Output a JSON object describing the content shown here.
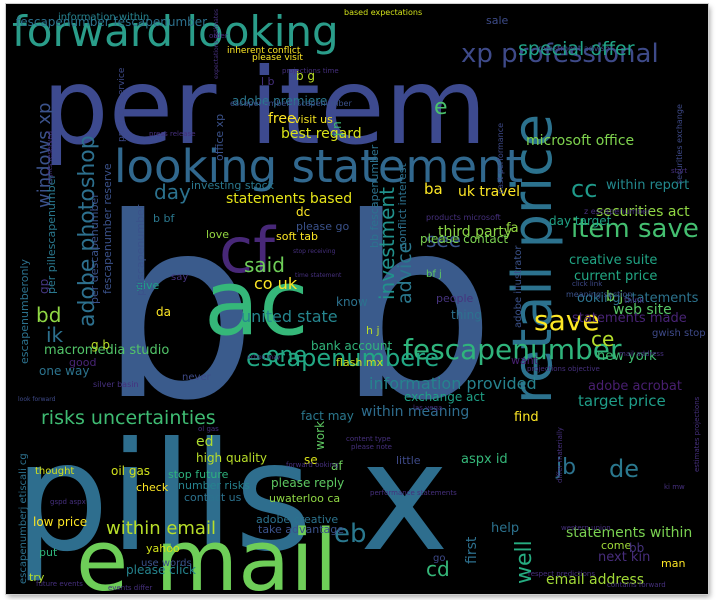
{
  "wordcloud": {
    "words": [
      {
        "text": "b b",
        "color": "#3a5b8c"
      },
      {
        "text": "per item",
        "color": "#3d4a8f"
      },
      {
        "text": "pills x",
        "color": "#2e6e8e"
      },
      {
        "text": "ac",
        "color": "#35b779"
      },
      {
        "text": "e mail",
        "color": "#6ece58"
      },
      {
        "text": "looking statement",
        "color": "#31688e"
      },
      {
        "text": "forward looking",
        "color": "#2a9d8a"
      },
      {
        "text": "retail price",
        "color": "#2c728e"
      },
      {
        "text": "cf",
        "color": "#482878"
      },
      {
        "text": "fescapenumber",
        "color": "#2fb47c"
      },
      {
        "text": "escapenumbere",
        "color": "#22a884"
      },
      {
        "text": "xp professional",
        "color": "#3e4a89"
      },
      {
        "text": "special offer",
        "color": "#20a486"
      },
      {
        "text": "item save",
        "color": "#44bf70"
      },
      {
        "text": "adobe photoshop",
        "color": "#2d708e"
      },
      {
        "text": "risks uncertainties",
        "color": "#3fbc73"
      },
      {
        "text": "within email",
        "color": "#b8de29"
      },
      {
        "text": "investment",
        "color": "#21918c"
      },
      {
        "text": "advice",
        "color": "#2a788e"
      },
      {
        "text": "windows xp",
        "color": "#3b528b"
      },
      {
        "text": "information provided",
        "color": "#26828e"
      },
      {
        "text": "email address",
        "color": "#a2da37"
      },
      {
        "text": "statements within",
        "color": "#7ad151"
      },
      {
        "text": "target price",
        "color": "#1f9e89"
      },
      {
        "text": "united state",
        "color": "#25858e"
      },
      {
        "text": "one",
        "color": "#22a884"
      },
      {
        "text": "said",
        "color": "#6ece58"
      },
      {
        "text": "co uk",
        "color": "#fde725"
      },
      {
        "text": "day",
        "color": "#2c728e"
      },
      {
        "text": "see",
        "color": "#3a548c"
      },
      {
        "text": "save",
        "color": "#fde725"
      },
      {
        "text": "cc",
        "color": "#1f9a8a"
      },
      {
        "text": "ce",
        "color": "#b5de2b"
      },
      {
        "text": "de",
        "color": "#2a788e"
      },
      {
        "text": "cd",
        "color": "#35b779"
      },
      {
        "text": "eb",
        "color": "#2a788e"
      },
      {
        "text": "ik",
        "color": "#2d708e"
      },
      {
        "text": "bd",
        "color": "#8fd744"
      },
      {
        "text": "jb",
        "color": "#2c738e"
      },
      {
        "text": "e",
        "color": "#4ac16d"
      },
      {
        "text": "well",
        "color": "#26ad81"
      },
      {
        "text": "first",
        "color": "#2d708e"
      },
      {
        "text": "macromedia studio",
        "color": "#52c569"
      },
      {
        "text": "within meaning",
        "color": "#2e6d8e"
      },
      {
        "text": "microsoft office",
        "color": "#7fd34e"
      },
      {
        "text": "adobe premiere",
        "color": "#2a778e"
      },
      {
        "text": "best regard",
        "color": "#d8e219"
      },
      {
        "text": "statements based",
        "color": "#e5e419"
      },
      {
        "text": "securities act",
        "color": "#90d743"
      },
      {
        "text": "current price",
        "color": "#22a884"
      },
      {
        "text": "web site",
        "color": "#56c667"
      },
      {
        "text": "third party",
        "color": "#8bd646"
      },
      {
        "text": "uk travel",
        "color": "#fde725"
      },
      {
        "text": "new york",
        "color": "#3fbc73"
      },
      {
        "text": "statements made",
        "color": "#482475"
      },
      {
        "text": "ooking statements",
        "color": "#2c738e"
      },
      {
        "text": "creative suite",
        "color": "#21a585"
      },
      {
        "text": "within report",
        "color": "#23898e"
      },
      {
        "text": "day target",
        "color": "#20a386"
      },
      {
        "text": "please contact",
        "color": "#7ad151"
      },
      {
        "text": "adobe acrobat",
        "color": "#481f70"
      },
      {
        "text": "bank account",
        "color": "#31b57b"
      },
      {
        "text": "high quality",
        "color": "#b8de29"
      },
      {
        "text": "oil gas",
        "color": "#d0e11c"
      },
      {
        "text": "stop future",
        "color": "#2db27d"
      },
      {
        "text": "number risks",
        "color": "#26828e"
      },
      {
        "text": "contact us",
        "color": "#2c728e"
      },
      {
        "text": "please reply",
        "color": "#5ec962"
      },
      {
        "text": "uwaterloo ca",
        "color": "#8fd744"
      },
      {
        "text": "take advantage",
        "color": "#3b528b"
      },
      {
        "text": "please click",
        "color": "#25848e"
      },
      {
        "text": "exchange act",
        "color": "#1fa187"
      },
      {
        "text": "fact may",
        "color": "#2a788e"
      },
      {
        "text": "aspx id",
        "color": "#35b779"
      },
      {
        "text": "work",
        "color": "#5ec962"
      },
      {
        "text": "find",
        "color": "#fde725"
      },
      {
        "text": "help",
        "color": "#2c728e"
      },
      {
        "text": "next kin",
        "color": "#472d7b"
      },
      {
        "text": "come",
        "color": "#a0da39"
      },
      {
        "text": "gp",
        "color": "#453882"
      },
      {
        "text": "bb",
        "color": "#46327e"
      },
      {
        "text": "sale",
        "color": "#3e4c8a"
      },
      {
        "text": "free",
        "color": "#fde725"
      },
      {
        "text": "visit us",
        "color": "#f6e620"
      },
      {
        "text": "office xp",
        "color": "#3b528b"
      },
      {
        "text": "ba",
        "color": "#fde725"
      },
      {
        "text": "fa",
        "color": "#93d741"
      },
      {
        "text": "dc",
        "color": "#fde725"
      },
      {
        "text": "love",
        "color": "#93d741"
      },
      {
        "text": "know",
        "color": "#2c728e"
      },
      {
        "text": "thing",
        "color": "#2d718e"
      },
      {
        "text": "people",
        "color": "#46337e"
      },
      {
        "text": "give",
        "color": "#1f9f88"
      },
      {
        "text": "one way",
        "color": "#2c738e"
      },
      {
        "text": "good",
        "color": "#482576"
      },
      {
        "text": "ed",
        "color": "#addc30"
      },
      {
        "text": "yahoo",
        "color": "#d2e21b"
      },
      {
        "text": "check",
        "color": "#fde725"
      },
      {
        "text": "put",
        "color": "#2fb47c"
      },
      {
        "text": "try",
        "color": "#b5de2b"
      },
      {
        "text": "low price",
        "color": "#fde725"
      },
      {
        "text": "thought",
        "color": "#d5e21a"
      },
      {
        "text": "use words",
        "color": "#3b528b"
      },
      {
        "text": "adobe creative",
        "color": "#2c738e"
      },
      {
        "text": "little",
        "color": "#3e4a89"
      },
      {
        "text": "go",
        "color": "#3e4a89"
      },
      {
        "text": "se",
        "color": "#d8e219"
      },
      {
        "text": "af",
        "color": "#6ccd5a"
      },
      {
        "text": "man",
        "color": "#fde725"
      },
      {
        "text": "want",
        "color": "#482071"
      },
      {
        "text": "say",
        "color": "#46327e"
      },
      {
        "text": "da",
        "color": "#fde725"
      },
      {
        "text": "never",
        "color": "#3e4a89"
      },
      {
        "text": "flash mx",
        "color": "#cae11f"
      },
      {
        "text": "h j",
        "color": "#bade28"
      },
      {
        "text": "soft tab",
        "color": "#fde725"
      },
      {
        "text": "please go",
        "color": "#3b528b"
      },
      {
        "text": "investing stock",
        "color": "#2a788e"
      },
      {
        "text": "bf j",
        "color": "#5ec962"
      },
      {
        "text": "b bf",
        "color": "#2a788e"
      },
      {
        "text": "b j",
        "color": "#6ece58"
      },
      {
        "text": "g b",
        "color": "#bade28"
      },
      {
        "text": "b g",
        "color": "#bade28"
      },
      {
        "text": "l b",
        "color": "#46307e"
      },
      {
        "text": "j n",
        "color": "#3fbc73"
      },
      {
        "text": "gwish stop",
        "color": "#3e4a89"
      },
      {
        "text": "bb fescapenumber",
        "color": "#2c728e"
      },
      {
        "text": "conflict interest",
        "color": "#2d718e"
      },
      {
        "text": "adobe illustrator",
        "color": "#3b528b"
      },
      {
        "text": "pillscapenumber",
        "color": "#3b528b"
      },
      {
        "text": "per pillescapenumber",
        "color": "#2a788e"
      },
      {
        "text": "per descapenumber",
        "color": "#3b528b"
      },
      {
        "text": "fescapenumber reserve",
        "color": "#3b528b"
      },
      {
        "text": "escapenumberonly",
        "color": "#2c728e"
      },
      {
        "text": "escapenumberj etiscali cg",
        "color": "#2d718e"
      },
      {
        "text": "fescapenumber fescapenumber",
        "color": "#2d718e"
      },
      {
        "text": "information within",
        "color": "#26828e"
      },
      {
        "text": "please visit",
        "color": "#fde725"
      },
      {
        "text": "inherent conflict",
        "color": "#fde725"
      },
      {
        "text": "based expectations",
        "color": "#d2e21b"
      },
      {
        "text": "investment advisor",
        "color": "#3e4a89"
      },
      {
        "text": "escapenumber escapenumber",
        "color": "#3b528b"
      },
      {
        "text": "past performance",
        "color": "#3e4a89"
      },
      {
        "text": "products service",
        "color": "#3e4a89"
      },
      {
        "text": "securities exchange",
        "color": "#3e4a89"
      },
      {
        "text": "z escapenumber",
        "color": "#46307e"
      },
      {
        "text": "products microsoft",
        "color": "#46307e"
      },
      {
        "text": "click link",
        "color": "#3e4a89"
      },
      {
        "text": "meaning section",
        "color": "#3b528b"
      },
      {
        "text": "time statement",
        "color": "#46307e"
      },
      {
        "text": "stop receiving",
        "color": "#46307e"
      },
      {
        "text": "look forward",
        "color": "#3e4a89"
      },
      {
        "text": "forward ooking",
        "color": "#46307e"
      },
      {
        "text": "please note",
        "color": "#46307e"
      },
      {
        "text": "content type",
        "color": "#46307e"
      },
      {
        "text": "performance statements",
        "color": "#46307e"
      },
      {
        "text": "differ materially",
        "color": "#46307e"
      },
      {
        "text": "estimates projections",
        "color": "#46307e"
      },
      {
        "text": "western union",
        "color": "#46307e"
      },
      {
        "text": "respect predictions",
        "color": "#46307e"
      },
      {
        "text": "contains forward",
        "color": "#46307e"
      },
      {
        "text": "future events",
        "color": "#46307e"
      },
      {
        "text": "events differ",
        "color": "#46307e"
      },
      {
        "text": "mail address",
        "color": "#46307e"
      },
      {
        "text": "projections objective",
        "color": "#46307e"
      },
      {
        "text": "silver basin",
        "color": "#46307e"
      },
      {
        "text": "action may",
        "color": "#46307e"
      },
      {
        "text": "las vega",
        "color": "#46307e"
      },
      {
        "text": "press release",
        "color": "#46307e"
      },
      {
        "text": "rights reserved",
        "color": "#46307e"
      },
      {
        "text": "projections time",
        "color": "#46307e"
      },
      {
        "text": "order",
        "color": "#46307e"
      },
      {
        "text": "expectations estimates",
        "color": "#46307e"
      },
      {
        "text": "gspd aspx",
        "color": "#46307e"
      },
      {
        "text": "start",
        "color": "#46307e"
      },
      {
        "text": "think",
        "color": "#46307e"
      },
      {
        "text": "ol gas",
        "color": "#46307e"
      },
      {
        "text": "ki mw",
        "color": "#46307e"
      }
    ]
  }
}
